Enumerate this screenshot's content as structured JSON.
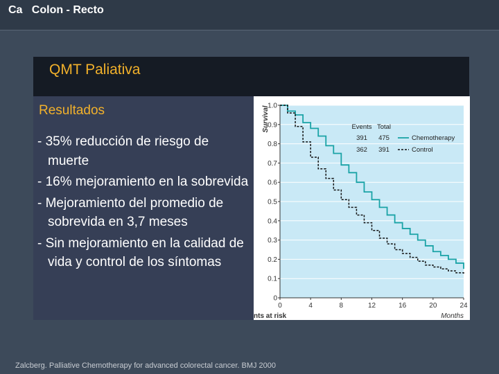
{
  "header": {
    "title": "Ca   Colon - Recto"
  },
  "panel": {
    "title": "QMT Paliativa"
  },
  "results": {
    "title": "Resultados",
    "bullets": [
      "- 35% reducción de riesgo de muerte",
      "- 16% mejoramiento en la sobrevida",
      "- Mejoramiento del promedio de sobrevida en 3,7 meses",
      "- Sin mejoramiento en la calidad de vida y control de los síntomas"
    ]
  },
  "footer": {
    "citation": "Zalcberg. Palliative Chemotherapy for advanced colorectal cancer. BMJ 2000"
  },
  "colors": {
    "chemotherapy": "#1aa3a6",
    "control": "#111111",
    "plot_background": "#c9e9f6",
    "accent": "#f2b12b"
  },
  "chart_data": {
    "type": "line",
    "ylabel": "Survival",
    "xlabel": "Months",
    "risk_label": "nts at risk",
    "xlim": [
      0,
      24
    ],
    "ylim": [
      0,
      1.0
    ],
    "x_ticks": [
      "0",
      "4",
      "8",
      "12",
      "16",
      "20",
      "24"
    ],
    "y_ticks": [
      "0",
      "0.1",
      "0.2",
      "0.3",
      "0.4",
      "0.5",
      "0.6",
      "0.7",
      "0.8",
      "0.9",
      "1.0"
    ],
    "grid": true,
    "legend": {
      "placement": "top-right",
      "headers": [
        "Events",
        "Total"
      ],
      "rows": [
        {
          "events": "391",
          "total": "475",
          "name": "Chemotherapy"
        },
        {
          "events": "362",
          "total": "391",
          "name": "Control"
        }
      ]
    },
    "series": [
      {
        "name": "Chemotherapy",
        "style": "solid",
        "x": [
          0,
          1,
          2,
          3,
          4,
          5,
          6,
          7,
          8,
          9,
          10,
          11,
          12,
          13,
          14,
          15,
          16,
          17,
          18,
          19,
          20,
          21,
          22,
          23,
          24
        ],
        "y": [
          1.0,
          0.97,
          0.95,
          0.91,
          0.88,
          0.84,
          0.79,
          0.75,
          0.69,
          0.65,
          0.6,
          0.55,
          0.51,
          0.47,
          0.43,
          0.39,
          0.36,
          0.33,
          0.3,
          0.27,
          0.24,
          0.22,
          0.2,
          0.18,
          0.15
        ]
      },
      {
        "name": "Control",
        "style": "dashed",
        "x": [
          0,
          1,
          2,
          3,
          4,
          5,
          6,
          7,
          8,
          9,
          10,
          11,
          12,
          13,
          14,
          15,
          16,
          17,
          18,
          19,
          20,
          21,
          22,
          23,
          24
        ],
        "y": [
          1.0,
          0.96,
          0.89,
          0.81,
          0.73,
          0.67,
          0.62,
          0.56,
          0.51,
          0.47,
          0.43,
          0.39,
          0.35,
          0.31,
          0.28,
          0.25,
          0.23,
          0.21,
          0.19,
          0.17,
          0.16,
          0.15,
          0.14,
          0.13,
          0.12
        ]
      }
    ]
  }
}
